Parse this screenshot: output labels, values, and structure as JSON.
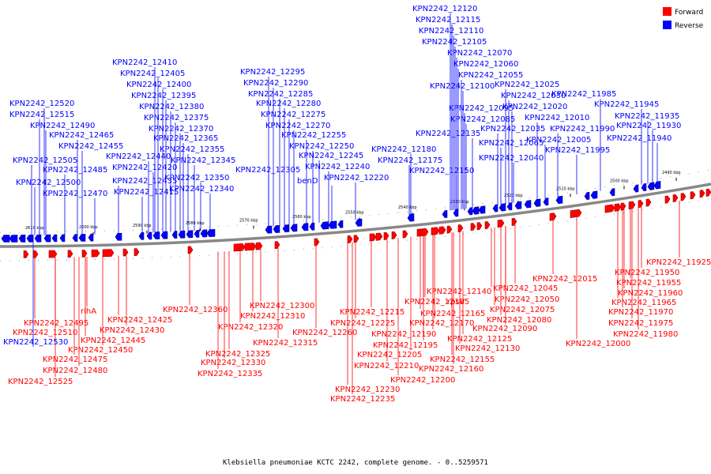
{
  "legend": [
    {
      "label": "Forward",
      "color": "#ff0000"
    },
    {
      "label": "Reverse",
      "color": "#0000ff"
    }
  ],
  "caption": "Klebsiella pneumoniae KCTC 2242, complete genome. - 0..5259571",
  "colors": {
    "forward": "#ff0000",
    "forward_dark": "#a00000",
    "reverse": "#0000ff",
    "reverse_dark": "#00008a",
    "backbone": "#888888"
  },
  "ticks": [
    "2610 kbp",
    "2600 kbp",
    "2590 kbp",
    "2580 kbp",
    "2570 kbp",
    "2560 kbp",
    "2550 kbp",
    "2540 kbp",
    "2530 kbp",
    "2520 kbp",
    "2510 kbp",
    "2500 kbp",
    "2490 kbp"
  ],
  "reverse_labels": [
    "KPN2242_12120",
    "KPN2242_12115",
    "KPN2242_12110",
    "KPN2242_12105",
    "KPN2242_12070",
    "KPN2242_12060",
    "KPN2242_12055",
    "KPN2242_12100",
    "KPN2242_12025",
    "KPN2242_12030",
    "KPN2242_11985",
    "KPN2242_12095",
    "KPN2242_12020",
    "KPN2242_11945",
    "KPN2242_12085",
    "KPN2242_12010",
    "KPN2242_11935",
    "KPN2242_12135",
    "KPN2242_12035",
    "KPN2242_11990",
    "KPN2242_11930",
    "KPN2242_12065",
    "KPN2242_12005",
    "KPN2242_11940",
    "KPN2242_11995",
    "KPN2242_12180",
    "KPN2242_12175",
    "KPN2242_12040",
    "KPN2242_12150",
    "KPN2242_12410",
    "KPN2242_12405",
    "KPN2242_12400",
    "KPN2242_12395",
    "KPN2242_12380",
    "KPN2242_12375",
    "KPN2242_12370",
    "KPN2242_12365",
    "KPN2242_12355",
    "KPN2242_12345",
    "KPN2242_12350",
    "KPN2242_12340",
    "KPN2242_12440",
    "KPN2242_12420",
    "KPN2242_12435",
    "KPN2242_12415",
    "KPN2242_12295",
    "KPN2242_12290",
    "KPN2242_12285",
    "KPN2242_12280",
    "KPN2242_12275",
    "KPN2242_12270",
    "KPN2242_12255",
    "KPN2242_12250",
    "KPN2242_12245",
    "KPN2242_12240",
    "KPN2242_12305",
    "benD",
    "KPN2242_12220",
    "KPN2242_12520",
    "KPN2242_12515",
    "KPN2242_12490",
    "KPN2242_12465",
    "KPN2242_12455",
    "KPN2242_12505",
    "KPN2242_12485",
    "KPN2242_12500",
    "KPN2242_12470",
    "KPN2242_12530"
  ],
  "forward_labels": [
    "KPN2242_11925",
    "KPN2242_11950",
    "KPN2242_11955",
    "KPN2242_11960",
    "KPN2242_11965",
    "KPN2242_11970",
    "KPN2242_11975",
    "KPN2242_11980",
    "KPN2242_12000",
    "KPN2242_12015",
    "KPN2242_12045",
    "KPN2242_12050",
    "KPN2242_12140",
    "KPN2242_12075",
    "KPN2242_12080",
    "KPN2242_12090",
    "KPN2242_12125",
    "KPN2242_12130",
    "KPN2242_12155",
    "KPN2242_12160",
    "KPN2242_12185",
    "rpsV",
    "KPN2242_12165",
    "KPN2242_12170",
    "KPN2242_12190",
    "KPN2242_12195",
    "KPN2242_12205",
    "KPN2242_12210",
    "KPN2242_12200",
    "KPN2242_12215",
    "KPN2242_12225",
    "KPN2242_12260",
    "KPN2242_12230",
    "KPN2242_12235",
    "KPN2242_12300",
    "KPN2242_12310",
    "KPN2242_12320",
    "KPN2242_12315",
    "KPN2242_12360",
    "KPN2242_12325",
    "KPN2242_12330",
    "KPN2242_12335",
    "rihA",
    "KPN2242_12425",
    "KPN2242_12430",
    "KPN2242_12495",
    "KPN2242_12510",
    "KPN2242_12445",
    "KPN2242_12450",
    "KPN2242_12475",
    "KPN2242_12480",
    "KPN2242_12525"
  ]
}
